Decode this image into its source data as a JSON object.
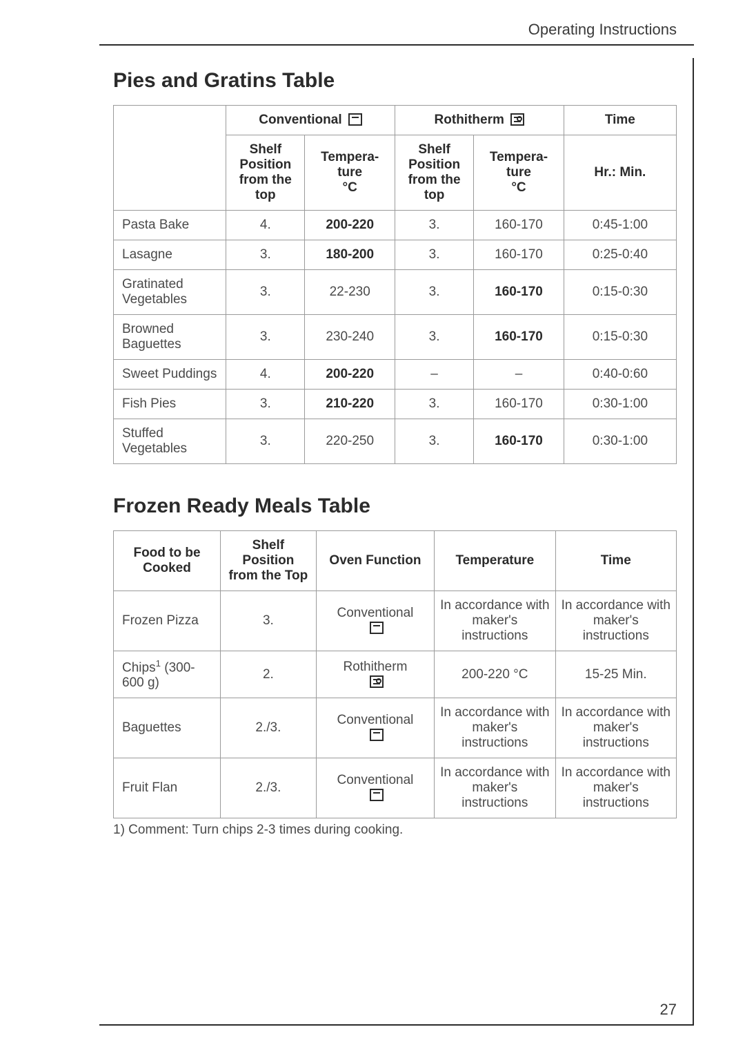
{
  "header": "Operating Instructions",
  "page_number": "27",
  "section1": {
    "title": "Pies and Gratins Table",
    "group_headers": {
      "conv": "Conventional",
      "roth": "Rothitherm",
      "time": "Time"
    },
    "col_headers": {
      "shelf": "Shelf Position from the top",
      "temp": "Tempera-\nture\n°C",
      "time": "Hr.: Min."
    },
    "rows": [
      {
        "food": "Pasta Bake",
        "c_shelf": "4.",
        "c_temp": "200-220",
        "c_temp_bold": true,
        "r_shelf": "3.",
        "r_temp": "160-170",
        "r_temp_bold": false,
        "time": "0:45-1:00"
      },
      {
        "food": "Lasagne",
        "c_shelf": "3.",
        "c_temp": "180-200",
        "c_temp_bold": true,
        "r_shelf": "3.",
        "r_temp": "160-170",
        "r_temp_bold": false,
        "time": "0:25-0:40"
      },
      {
        "food": "Gratinated Vegetables",
        "c_shelf": "3.",
        "c_temp": "22-230",
        "c_temp_bold": false,
        "r_shelf": "3.",
        "r_temp": "160-170",
        "r_temp_bold": true,
        "time": "0:15-0:30"
      },
      {
        "food": "Browned Baguettes",
        "c_shelf": "3.",
        "c_temp": "230-240",
        "c_temp_bold": false,
        "r_shelf": "3.",
        "r_temp": "160-170",
        "r_temp_bold": true,
        "time": "0:15-0:30"
      },
      {
        "food": "Sweet Puddings",
        "c_shelf": "4.",
        "c_temp": "200-220",
        "c_temp_bold": true,
        "r_shelf": "–",
        "r_temp": "–",
        "r_temp_bold": false,
        "time": "0:40-0:60"
      },
      {
        "food": "Fish Pies",
        "c_shelf": "3.",
        "c_temp": "210-220",
        "c_temp_bold": true,
        "r_shelf": "3.",
        "r_temp": "160-170",
        "r_temp_bold": false,
        "time": "0:30-1:00"
      },
      {
        "food": "Stuffed Vegetables",
        "c_shelf": "3.",
        "c_temp": "220-250",
        "c_temp_bold": false,
        "r_shelf": "3.",
        "r_temp": "160-170",
        "r_temp_bold": true,
        "time": "0:30-1:00"
      }
    ]
  },
  "section2": {
    "title": "Frozen Ready Meals Table",
    "col_headers": {
      "food": "Food to be Cooked",
      "shelf": "Shelf Position from the Top",
      "func": "Oven Function",
      "temp": "Temperature",
      "time": "Time"
    },
    "rows": [
      {
        "food": "Frozen Pizza",
        "food_html": "Frozen Pizza",
        "shelf": "3.",
        "func": "Conventional",
        "func_icon": "conv",
        "temp": "In accordance with maker's instructions",
        "time": "In accordance with maker's instructions"
      },
      {
        "food": "Chips1 (300-600 g)",
        "food_html": "Chips<sup>1</sup> (300-600 g)",
        "shelf": "2.",
        "func": "Rothitherm",
        "func_icon": "roth",
        "temp": "200-220 °C",
        "time": "15-25 Min."
      },
      {
        "food": "Baguettes",
        "food_html": "Baguettes",
        "shelf": "2./3.",
        "func": "Conventional",
        "func_icon": "conv",
        "temp": "In accordance with maker's instructions",
        "time": "In accordance with maker's instructions"
      },
      {
        "food": "Fruit Flan",
        "food_html": "Fruit Flan",
        "shelf": "2./3.",
        "func": "Conventional",
        "func_icon": "conv",
        "temp": "In accordance with maker's instructions",
        "time": "In accordance with maker's instructions"
      }
    ],
    "footnote": "1) Comment: Turn chips 2-3 times during cooking."
  },
  "colors": {
    "text": "#4a4a4a",
    "heading": "#2b2b2b",
    "border": "#9a9a9a",
    "frame": "#2b2b2b",
    "background": "#ffffff"
  },
  "table1_col_widths_pct": [
    20,
    14,
    16,
    14,
    16,
    20
  ],
  "table2_col_widths_pct": [
    19,
    17,
    21,
    21.5,
    21.5
  ]
}
